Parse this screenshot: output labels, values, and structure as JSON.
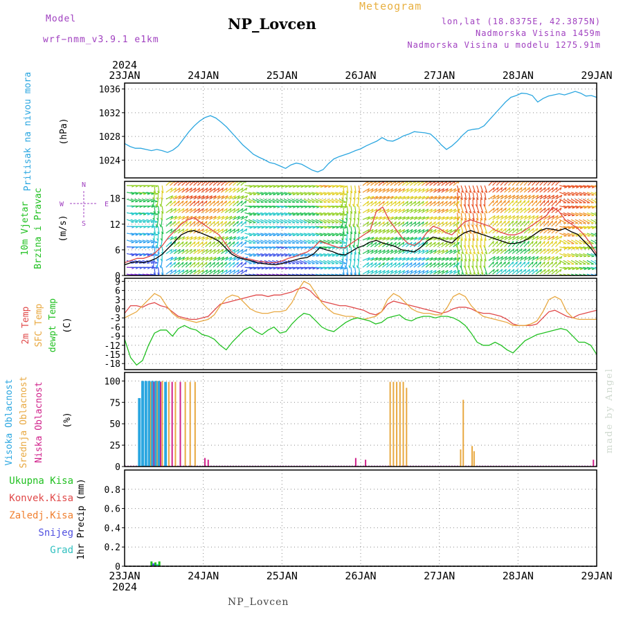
{
  "header": {
    "model_label": "Model",
    "model_name": "wrf−nmm_v3.9.1  e1km",
    "station": "NP_Lovcen",
    "product": "Meteogram",
    "coords": "lon,lat (18.8375E, 42.3875N)",
    "elevation": "Nadmorska Visina 1459m",
    "model_elevation": "Nadmorska Visina u modelu 1275.91m"
  },
  "footer": {
    "station": "NP_Lovcen",
    "credit": "made by Angel"
  },
  "colors": {
    "pressure": "#2aa6e0",
    "temp2m": "#e04848",
    "tsfc": "#e8a840",
    "dewpt": "#20c020",
    "wind_label": "#20c020",
    "high_cloud": "#2aa6e0",
    "mid_cloud": "#e8a840",
    "low_cloud": "#d0208a",
    "precip_total": "#20c020",
    "precip_conv": "#e04848",
    "precip_frozen": "#f08030",
    "snow": "#5050e0",
    "hail": "#30c0c0",
    "compass": "#a040c0"
  },
  "chart_data": [
    {
      "type": "line",
      "panel": "pressure",
      "x_labels": [
        "23JAN",
        "24JAN",
        "25JAN",
        "26JAN",
        "27JAN",
        "28JAN",
        "29JAN"
      ],
      "year_label": "2024",
      "ylabel_lines": [
        "Pritisak na nivou mora",
        "(hPa)"
      ],
      "ylim": [
        1021,
        1037
      ],
      "yticks": [
        "1024",
        "1028",
        "1032",
        "1036"
      ],
      "grid": true,
      "series": [
        {
          "values": [
            1026.8,
            1026.3,
            1026.0,
            1026.0,
            1025.8,
            1025.6,
            1025.8,
            1025.6,
            1025.3,
            1025.7,
            1026.4,
            1027.6,
            1028.8,
            1029.8,
            1030.6,
            1031.2,
            1031.5,
            1031.1,
            1030.4,
            1029.6,
            1028.6,
            1027.6,
            1026.6,
            1025.8,
            1025.0,
            1024.5,
            1024.1,
            1023.6,
            1023.4,
            1023.0,
            1022.6,
            1023.2,
            1023.5,
            1023.3,
            1022.8,
            1022.3,
            1022.0,
            1022.4,
            1023.4,
            1024.2,
            1024.6,
            1024.9,
            1025.2,
            1025.6,
            1025.9,
            1026.4,
            1026.8,
            1027.2,
            1027.8,
            1027.3,
            1027.2,
            1027.6,
            1028.1,
            1028.4,
            1028.8,
            1028.7,
            1028.6,
            1028.4,
            1027.6,
            1026.6,
            1025.8,
            1026.4,
            1027.2,
            1028.2,
            1029.0,
            1029.2,
            1029.3,
            1029.8,
            1030.8,
            1031.8,
            1032.8,
            1033.8,
            1034.6,
            1034.9,
            1035.3,
            1035.2,
            1034.9,
            1033.8,
            1034.4,
            1034.8,
            1035.0,
            1035.2,
            1035.0,
            1035.3,
            1035.6,
            1035.3,
            1034.8,
            1034.9,
            1034.6
          ]
        }
      ]
    },
    {
      "type": "line",
      "panel": "wind",
      "ylabel_lines": [
        "10m Vjetar",
        "Brzina i Pravac",
        "(m/s)"
      ],
      "compass": {
        "n": "N",
        "s": "S",
        "e": "E",
        "w": "W"
      },
      "ylim": [
        0,
        22
      ],
      "yticks": [
        "0",
        "6",
        "12",
        "18"
      ],
      "grid": true,
      "series": [
        {
          "kind": "speed",
          "color": "#000000",
          "values": [
            2.5,
            3.0,
            3.2,
            3.0,
            3.4,
            4.0,
            5.0,
            6.5,
            8.0,
            9.5,
            10.2,
            10.5,
            10.0,
            9.4,
            8.8,
            8.0,
            6.5,
            5.0,
            4.2,
            3.8,
            3.5,
            3.0,
            2.8,
            2.6,
            2.5,
            2.8,
            3.2,
            3.6,
            4.0,
            4.2,
            5.0,
            6.5,
            6.0,
            5.6,
            5.0,
            4.8,
            5.6,
            6.5,
            7.0,
            7.8,
            8.2,
            7.6,
            7.2,
            6.8,
            6.0,
            5.8,
            5.5,
            6.5,
            8.0,
            9.0,
            8.6,
            8.0,
            7.6,
            9.0,
            10.0,
            10.5,
            10.0,
            9.5,
            9.0,
            8.5,
            8.0,
            7.5,
            7.5,
            7.8,
            8.5,
            9.5,
            10.5,
            11.0,
            10.8,
            10.5,
            11.0,
            10.2,
            9.6,
            8.0,
            6.5,
            4.5
          ]
        },
        {
          "kind": "gust",
          "color": "#e04848",
          "values": [
            3.0,
            3.5,
            4.0,
            4.0,
            4.5,
            5.5,
            7.0,
            9.0,
            10.5,
            12.0,
            13.0,
            13.5,
            12.5,
            11.5,
            10.5,
            9.5,
            7.5,
            5.5,
            4.6,
            4.0,
            3.8,
            3.4,
            3.2,
            3.0,
            3.0,
            3.4,
            4.0,
            4.4,
            5.0,
            5.5,
            6.5,
            8.0,
            7.5,
            7.0,
            6.5,
            6.5,
            7.5,
            8.5,
            9.5,
            10.5,
            15.0,
            16.0,
            13.0,
            11.0,
            9.0,
            7.5,
            7.0,
            8.0,
            10.0,
            11.5,
            11.0,
            10.0,
            9.5,
            11.0,
            12.5,
            13.0,
            12.5,
            12.0,
            11.5,
            10.5,
            10.0,
            9.5,
            9.5,
            10.0,
            11.0,
            12.0,
            13.0,
            14.0,
            16.0,
            15.0,
            13.0,
            12.0,
            11.0,
            9.5,
            7.5,
            5.0
          ]
        }
      ]
    },
    {
      "type": "line",
      "panel": "temperature",
      "ylabel_lines": [
        "2m Temp",
        "SFC Temp",
        "dewpt Temp",
        "(C)"
      ],
      "ylim": [
        -20,
        10
      ],
      "yticks": [
        "9",
        "6",
        "3",
        "0",
        "-3",
        "-6",
        "-9",
        "-12",
        "-15",
        "-18"
      ],
      "grid": true,
      "series": [
        {
          "key": "temp2m",
          "values": [
            -1.5,
            1.0,
            1.0,
            0.5,
            1.5,
            2.0,
            1.0,
            0.5,
            -1.0,
            -2.5,
            -3.0,
            -3.5,
            -3.5,
            -3.0,
            -2.5,
            -0.5,
            1.5,
            2.0,
            2.5,
            3.0,
            3.5,
            4.0,
            4.5,
            4.5,
            4.0,
            4.5,
            4.5,
            5.0,
            5.5,
            6.5,
            7.0,
            6.0,
            4.0,
            2.5,
            2.0,
            1.5,
            1.0,
            1.0,
            0.5,
            0.0,
            -0.5,
            -1.5,
            -2.0,
            -1.0,
            1.5,
            2.5,
            2.0,
            1.5,
            1.0,
            0.5,
            0.0,
            -0.5,
            -1.0,
            -1.5,
            -1.0,
            0.0,
            0.5,
            0.5,
            0.0,
            -1.0,
            -1.5,
            -1.5,
            -2.0,
            -2.5,
            -3.5,
            -5.0,
            -5.5,
            -5.5,
            -5.5,
            -5.0,
            -3.0,
            -1.0,
            -0.5,
            -1.5,
            -2.5,
            -3.0,
            -2.0,
            -1.5,
            -1.0,
            -0.5
          ]
        },
        {
          "key": "tsfc",
          "values": [
            -3.0,
            -2.0,
            -1.0,
            1.0,
            3.0,
            5.0,
            4.0,
            1.0,
            -1.5,
            -3.0,
            -3.5,
            -4.0,
            -4.5,
            -4.0,
            -3.5,
            -2.0,
            1.0,
            3.5,
            4.5,
            4.0,
            2.0,
            0.0,
            -1.0,
            -1.5,
            -1.5,
            -1.0,
            -1.0,
            -0.5,
            2.0,
            6.0,
            9.0,
            8.0,
            5.0,
            2.0,
            0.0,
            -1.5,
            -2.0,
            -2.5,
            -2.5,
            -3.0,
            -3.5,
            -3.0,
            -2.5,
            -1.0,
            3.0,
            5.0,
            4.0,
            2.0,
            0.0,
            -1.0,
            -1.5,
            -1.5,
            -2.0,
            -2.0,
            0.5,
            4.0,
            5.0,
            4.0,
            1.0,
            -1.0,
            -2.5,
            -3.0,
            -3.5,
            -4.0,
            -4.5,
            -5.5,
            -5.5,
            -5.5,
            -5.0,
            -4.0,
            -1.0,
            3.0,
            4.0,
            3.0,
            -1.0,
            -3.0,
            -3.5,
            -3.5,
            -3.5,
            -3.5
          ]
        },
        {
          "key": "dewpt",
          "values": [
            -10.0,
            -16.0,
            -18.5,
            -17.0,
            -12.0,
            -8.0,
            -7.0,
            -7.0,
            -9.0,
            -6.5,
            -5.5,
            -6.5,
            -7.0,
            -8.5,
            -9.0,
            -10.0,
            -12.0,
            -13.5,
            -11.0,
            -9.0,
            -7.0,
            -6.0,
            -7.5,
            -8.5,
            -7.0,
            -6.0,
            -8.0,
            -7.5,
            -5.0,
            -3.0,
            -1.5,
            -2.0,
            -4.0,
            -6.0,
            -7.0,
            -7.5,
            -6.0,
            -4.5,
            -3.5,
            -3.0,
            -3.5,
            -4.0,
            -5.0,
            -4.5,
            -3.0,
            -2.5,
            -2.0,
            -3.5,
            -4.0,
            -3.0,
            -2.5,
            -2.5,
            -3.0,
            -2.5,
            -2.5,
            -3.0,
            -4.0,
            -5.5,
            -8.0,
            -11.0,
            -12.0,
            -12.0,
            -11.0,
            -12.0,
            -13.5,
            -14.5,
            -12.5,
            -10.5,
            -9.5,
            -8.5,
            -8.0,
            -7.5,
            -7.0,
            -6.5,
            -7.0,
            -9.0,
            -11.0,
            -11.0,
            -12.0,
            -15.0
          ]
        }
      ]
    },
    {
      "type": "bar",
      "panel": "cloud",
      "ylabel_lines": [
        "Visoka Oblacnost",
        "Srednja Oblacnost",
        "Niska Oblacnost",
        "(%)"
      ],
      "ylim": [
        0,
        110
      ],
      "yticks": [
        "0",
        "25",
        "50",
        "75",
        "100"
      ],
      "grid": true,
      "bars": [
        {
          "hour": 4.5,
          "key": "high",
          "value": 80
        },
        {
          "hour": 5.5,
          "key": "high",
          "value": 100
        },
        {
          "hour": 6.5,
          "key": "high",
          "value": 100
        },
        {
          "hour": 7.5,
          "key": "high",
          "value": 100
        },
        {
          "hour": 8.0,
          "key": "mid",
          "value": 99
        },
        {
          "hour": 8.5,
          "key": "high",
          "value": 100
        },
        {
          "hour": 9.0,
          "key": "low",
          "value": 99
        },
        {
          "hour": 9.5,
          "key": "high",
          "value": 100
        },
        {
          "hour": 10.0,
          "key": "mid",
          "value": 100
        },
        {
          "hour": 10.5,
          "key": "high",
          "value": 100
        },
        {
          "hour": 11.0,
          "key": "low",
          "value": 99
        },
        {
          "hour": 11.5,
          "key": "mid",
          "value": 100
        },
        {
          "hour": 12.5,
          "key": "high",
          "value": 99
        },
        {
          "hour": 13.5,
          "key": "mid",
          "value": 99
        },
        {
          "hour": 14.5,
          "key": "low",
          "value": 99
        },
        {
          "hour": 15.5,
          "key": "mid",
          "value": 99
        },
        {
          "hour": 17.0,
          "key": "low",
          "value": 99
        },
        {
          "hour": 18.5,
          "key": "mid",
          "value": 99
        },
        {
          "hour": 20.0,
          "key": "mid",
          "value": 99
        },
        {
          "hour": 21.5,
          "key": "mid",
          "value": 99
        },
        {
          "hour": 24.5,
          "key": "low",
          "value": 10
        },
        {
          "hour": 25.5,
          "key": "low",
          "value": 8
        },
        {
          "hour": 70.5,
          "key": "low",
          "value": 10
        },
        {
          "hour": 73.5,
          "key": "low",
          "value": 8
        },
        {
          "hour": 81.0,
          "key": "mid",
          "value": 99
        },
        {
          "hour": 82.0,
          "key": "mid",
          "value": 99
        },
        {
          "hour": 83.0,
          "key": "mid",
          "value": 99
        },
        {
          "hour": 84.0,
          "key": "mid",
          "value": 99
        },
        {
          "hour": 85.0,
          "key": "mid",
          "value": 99
        },
        {
          "hour": 86.0,
          "key": "mid",
          "value": 92
        },
        {
          "hour": 102.5,
          "key": "mid",
          "value": 20
        },
        {
          "hour": 103.3,
          "key": "mid",
          "value": 78
        },
        {
          "hour": 106.0,
          "key": "mid",
          "value": 24
        },
        {
          "hour": 106.6,
          "key": "mid",
          "value": 18
        },
        {
          "hour": 143.0,
          "key": "low",
          "value": 8
        }
      ]
    },
    {
      "type": "bar",
      "panel": "precip",
      "ylabel_lines": [
        "1hr Precip (mm)"
      ],
      "legend": [
        "Ukupna Kisa",
        "Konvek.Kisa",
        "Zaledj.Kisa",
        "Snijeg",
        "Grad"
      ],
      "ylim": [
        0,
        1.0
      ],
      "yticks": [
        "0",
        "0.2",
        "0.4",
        "0.6",
        "0.8"
      ],
      "grid": true,
      "bars": [
        {
          "hour": 8.2,
          "key": "total",
          "value": 0.05
        },
        {
          "hour": 8.8,
          "key": "snow",
          "value": 0.03
        },
        {
          "hour": 9.4,
          "key": "total",
          "value": 0.04
        },
        {
          "hour": 10.0,
          "key": "hail",
          "value": 0.02
        },
        {
          "hour": 10.6,
          "key": "total",
          "value": 0.05
        }
      ],
      "x_labels": [
        "23JAN",
        "24JAN",
        "25JAN",
        "26JAN",
        "27JAN",
        "28JAN",
        "29JAN"
      ],
      "year_label": "2024"
    }
  ]
}
